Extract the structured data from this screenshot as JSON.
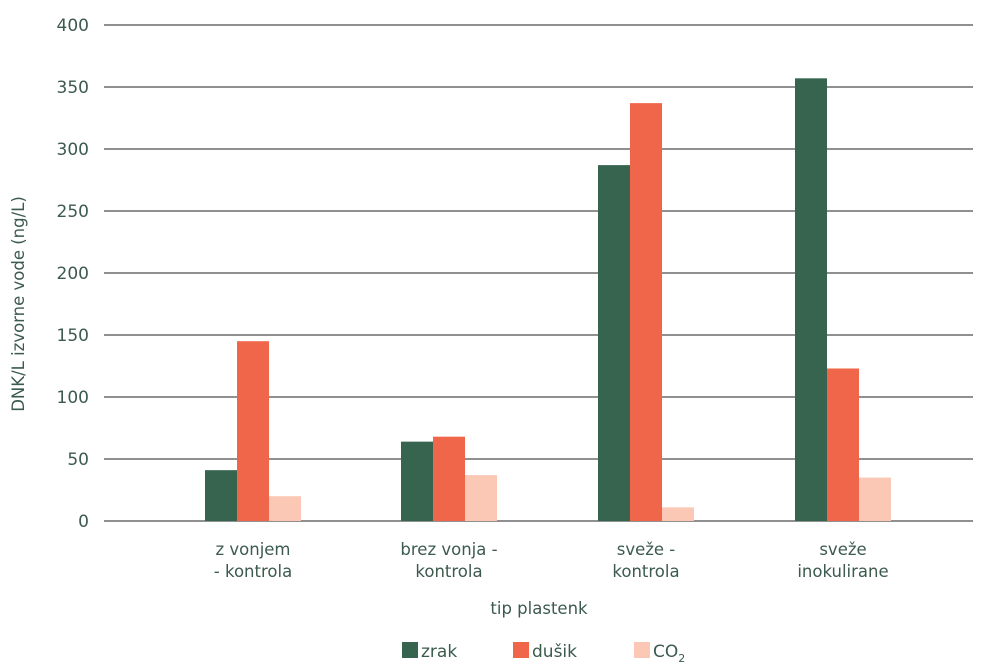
{
  "chart_data": {
    "type": "bar",
    "title": "",
    "xlabel": "tip plastenk",
    "ylabel": "DNK/L izvorne vode (ng/L)",
    "ylim": [
      0,
      400
    ],
    "yticks": [
      0,
      50,
      100,
      150,
      200,
      250,
      300,
      350,
      400
    ],
    "grid": true,
    "legend_position": "bottom",
    "categories": [
      [
        "z vonjem",
        "- kontrola"
      ],
      [
        "brez vonja -",
        "kontrola"
      ],
      [
        "sveže -",
        "kontrola"
      ],
      [
        "sveže",
        "inokulirane"
      ]
    ],
    "series": [
      {
        "name": "zrak",
        "color": "#37644f",
        "values": [
          41,
          64,
          287,
          357
        ]
      },
      {
        "name": "dušik",
        "color": "#f0664a",
        "values": [
          145,
          68,
          337,
          123
        ]
      },
      {
        "name": "CO",
        "name_subscript": "2",
        "color": "#fac8b4",
        "values": [
          20,
          37,
          11,
          35
        ]
      }
    ]
  }
}
